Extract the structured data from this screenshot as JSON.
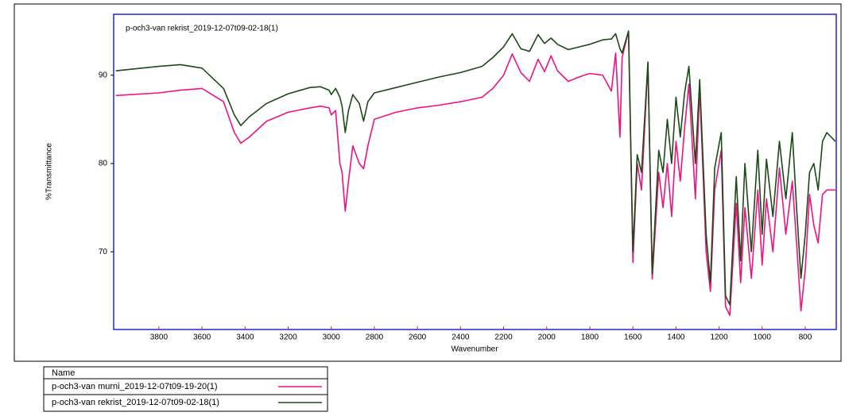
{
  "chart_data": {
    "type": "line",
    "title": "p-och3-van rekrist_2019-12-07t09-02-18(1)",
    "x_label": "Wavenumber",
    "y_label": "%Transmittance",
    "legend_title": "Name",
    "xlim": [
      4010,
      656
    ],
    "ylim": [
      61.2,
      96.9
    ],
    "xticks": [
      3800,
      3600,
      3400,
      3200,
      3000,
      2800,
      2600,
      2400,
      2200,
      2000,
      1800,
      1600,
      1400,
      1200,
      1000,
      800
    ],
    "yticks": [
      70,
      80,
      90
    ],
    "x": [
      4000,
      3800,
      3700,
      3600,
      3500,
      3450,
      3420,
      3380,
      3300,
      3200,
      3100,
      3050,
      3010,
      3000,
      2980,
      2960,
      2950,
      2935,
      2920,
      2900,
      2870,
      2850,
      2830,
      2800,
      2700,
      2600,
      2500,
      2400,
      2300,
      2250,
      2200,
      2160,
      2120,
      2080,
      2040,
      2010,
      1980,
      1950,
      1900,
      1850,
      1800,
      1740,
      1700,
      1680,
      1660,
      1650,
      1620,
      1600,
      1580,
      1560,
      1530,
      1510,
      1480,
      1460,
      1440,
      1420,
      1400,
      1380,
      1360,
      1340,
      1310,
      1290,
      1260,
      1240,
      1220,
      1190,
      1170,
      1150,
      1120,
      1100,
      1080,
      1050,
      1020,
      1000,
      980,
      950,
      920,
      890,
      860,
      840,
      820,
      800,
      780,
      760,
      740,
      720,
      700,
      660
    ],
    "series": [
      {
        "name": "p-och3-van murni_2019-12-07t09-19-20(1)",
        "color": "#f0127f",
        "values": [
          87.7,
          88.0,
          88.3,
          88.5,
          87.0,
          83.5,
          82.3,
          83.0,
          84.8,
          85.8,
          86.3,
          86.5,
          86.3,
          85.5,
          86.0,
          80.0,
          79.0,
          74.6,
          78.0,
          82.0,
          80.0,
          79.4,
          82.0,
          85.0,
          85.8,
          86.3,
          86.6,
          87.0,
          87.5,
          88.5,
          90.0,
          92.4,
          90.3,
          89.3,
          91.8,
          90.4,
          92.2,
          90.5,
          89.3,
          89.8,
          90.2,
          90.0,
          88.2,
          92.5,
          83.0,
          92.0,
          95.0,
          68.8,
          80.0,
          77.0,
          91.3,
          66.9,
          79.0,
          75.0,
          80.0,
          74.0,
          82.5,
          78.0,
          84.0,
          89.0,
          76.0,
          88.5,
          70.0,
          65.5,
          77.0,
          81.5,
          63.8,
          62.8,
          75.5,
          66.5,
          75.0,
          67.0,
          77.0,
          68.5,
          76.0,
          70.0,
          79.5,
          72.0,
          78.0,
          71.0,
          63.3,
          68.0,
          76.5,
          73.0,
          71.0,
          76.5,
          77.0,
          77.0
        ]
      },
      {
        "name": "p-och3-van rekrist_2019-12-07t09-02-18(1)",
        "color": "#1b4a17",
        "values": [
          90.5,
          91.0,
          91.2,
          90.8,
          88.5,
          85.5,
          84.3,
          85.3,
          86.8,
          87.9,
          88.6,
          88.7,
          88.3,
          87.8,
          88.5,
          87.5,
          86.5,
          83.5,
          86.0,
          87.8,
          86.8,
          84.8,
          87.0,
          88.0,
          88.6,
          89.2,
          89.8,
          90.3,
          91.0,
          92.0,
          93.2,
          94.7,
          93.0,
          92.7,
          94.6,
          93.6,
          94.2,
          93.5,
          92.9,
          93.2,
          93.5,
          94.0,
          94.1,
          94.7,
          93.0,
          92.5,
          95.0,
          70.0,
          81.0,
          79.0,
          91.5,
          67.5,
          81.5,
          79.0,
          85.0,
          80.0,
          87.5,
          83.0,
          88.0,
          91.0,
          80.0,
          89.5,
          72.0,
          66.5,
          79.5,
          83.5,
          65.0,
          64.0,
          78.5,
          69.0,
          80.0,
          70.0,
          81.5,
          72.0,
          80.5,
          74.0,
          82.5,
          76.0,
          83.5,
          75.0,
          67.0,
          72.0,
          79.0,
          80.0,
          77.0,
          82.5,
          83.5,
          82.5
        ]
      }
    ]
  }
}
